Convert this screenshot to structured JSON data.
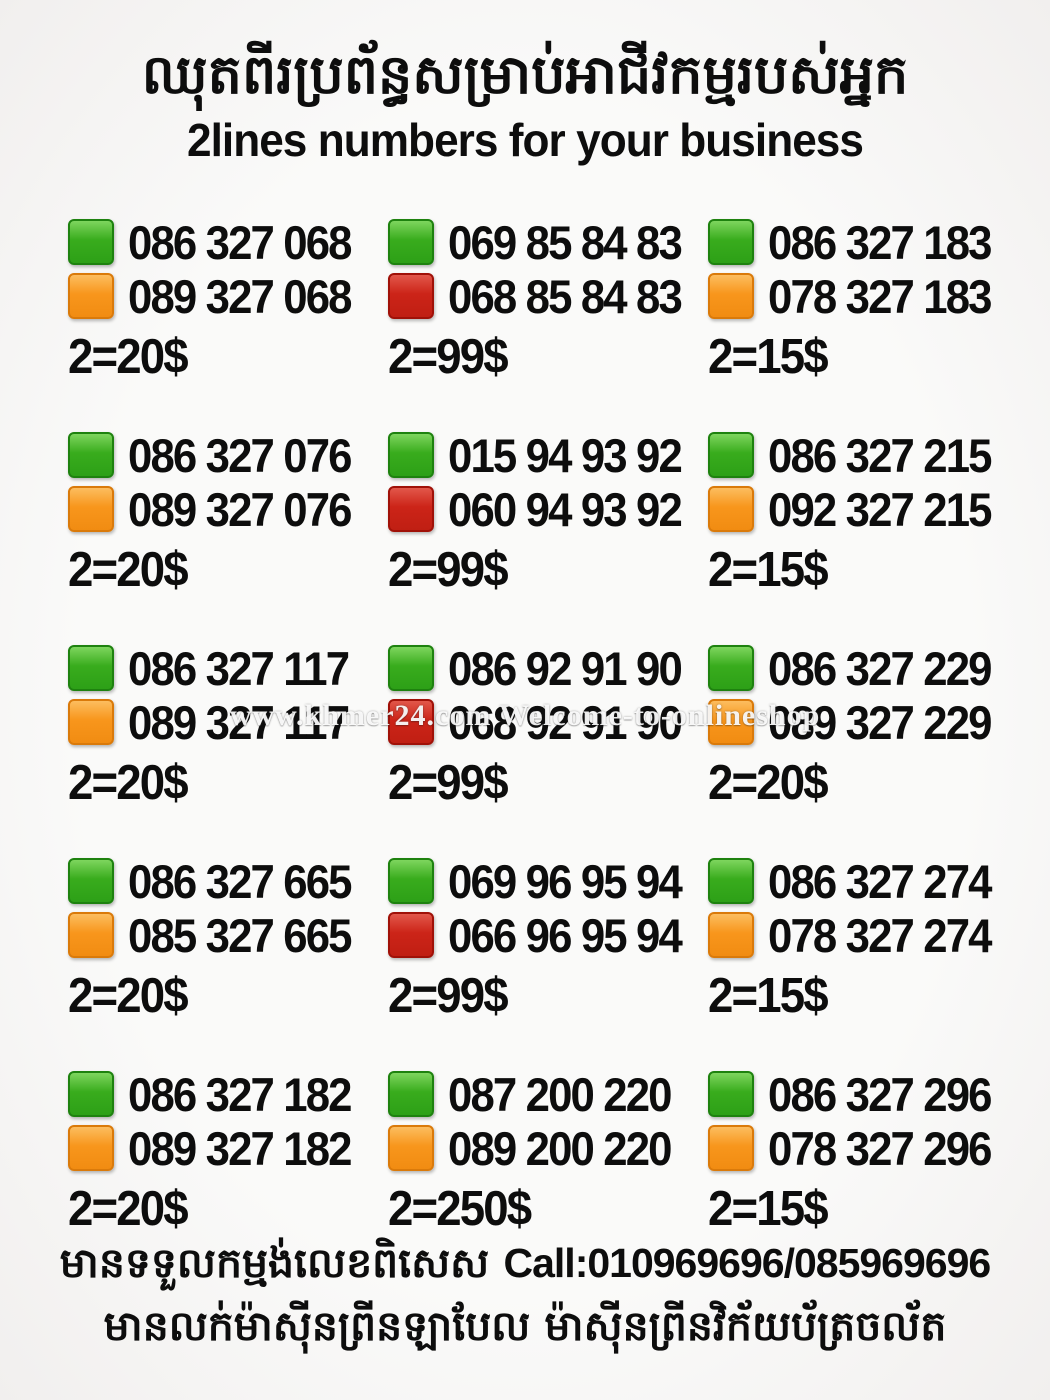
{
  "header": {
    "title_khmer": "ឈុតពីរប្រព័ន្ធសម្រាប់អាជីវកម្មរបស់អ្នក",
    "subtitle": "2lines numbers for your business"
  },
  "colors": {
    "green": "#2DA017",
    "orange": "#F8961C",
    "red": "#CC2418",
    "background": "#F7F6F5",
    "text": "#0D0D0D"
  },
  "listings": [
    {
      "line1": {
        "color": "green",
        "number": "086 327 068"
      },
      "line2": {
        "color": "orange",
        "number": "089 327 068"
      },
      "price": "2=20$"
    },
    {
      "line1": {
        "color": "green",
        "number": "069 85 84 83"
      },
      "line2": {
        "color": "red",
        "number": "068 85 84 83"
      },
      "price": "2=99$"
    },
    {
      "line1": {
        "color": "green",
        "number": "086 327 183"
      },
      "line2": {
        "color": "orange",
        "number": "078 327 183"
      },
      "price": "2=15$"
    },
    {
      "line1": {
        "color": "green",
        "number": "086 327 076"
      },
      "line2": {
        "color": "orange",
        "number": "089 327 076"
      },
      "price": "2=20$"
    },
    {
      "line1": {
        "color": "green",
        "number": "015 94 93 92"
      },
      "line2": {
        "color": "red",
        "number": "060 94 93 92"
      },
      "price": "2=99$"
    },
    {
      "line1": {
        "color": "green",
        "number": "086 327 215"
      },
      "line2": {
        "color": "orange",
        "number": "092 327 215"
      },
      "price": "2=15$"
    },
    {
      "line1": {
        "color": "green",
        "number": "086 327 117"
      },
      "line2": {
        "color": "orange",
        "number": "089 327 117"
      },
      "price": "2=20$"
    },
    {
      "line1": {
        "color": "green",
        "number": "086 92 91 90"
      },
      "line2": {
        "color": "red",
        "number": "068 92 91 90"
      },
      "price": "2=99$"
    },
    {
      "line1": {
        "color": "green",
        "number": "086 327 229"
      },
      "line2": {
        "color": "orange",
        "number": "089 327 229"
      },
      "price": "2=20$"
    },
    {
      "line1": {
        "color": "green",
        "number": "086 327 665"
      },
      "line2": {
        "color": "orange",
        "number": "085 327 665"
      },
      "price": "2=20$"
    },
    {
      "line1": {
        "color": "green",
        "number": "069 96 95 94"
      },
      "line2": {
        "color": "red",
        "number": "066 96 95 94"
      },
      "price": "2=99$"
    },
    {
      "line1": {
        "color": "green",
        "number": "086 327 274"
      },
      "line2": {
        "color": "orange",
        "number": "078 327 274"
      },
      "price": "2=15$"
    },
    {
      "line1": {
        "color": "green",
        "number": "086 327 182"
      },
      "line2": {
        "color": "orange",
        "number": "089 327 182"
      },
      "price": "2=20$"
    },
    {
      "line1": {
        "color": "green",
        "number": "087 200 220"
      },
      "line2": {
        "color": "orange",
        "number": "089 200 220"
      },
      "price": "2=250$"
    },
    {
      "line1": {
        "color": "green",
        "number": "086 327 296"
      },
      "line2": {
        "color": "orange",
        "number": "078 327 296"
      },
      "price": "2=15$"
    }
  ],
  "watermark": "www.khmer24.com Welcome-to-onlineshop",
  "footer": {
    "order_note_khmer": "មានទទួលកម្មង់លេខពិសេស",
    "call_label": "Call:010969696/085969696",
    "sales_note_khmer": "មានលក់ម៉ាស៊ីនព្រីនឡាបែល ម៉ាស៊ីនព្រីនវិក័យប័ត្រចល័ត"
  }
}
